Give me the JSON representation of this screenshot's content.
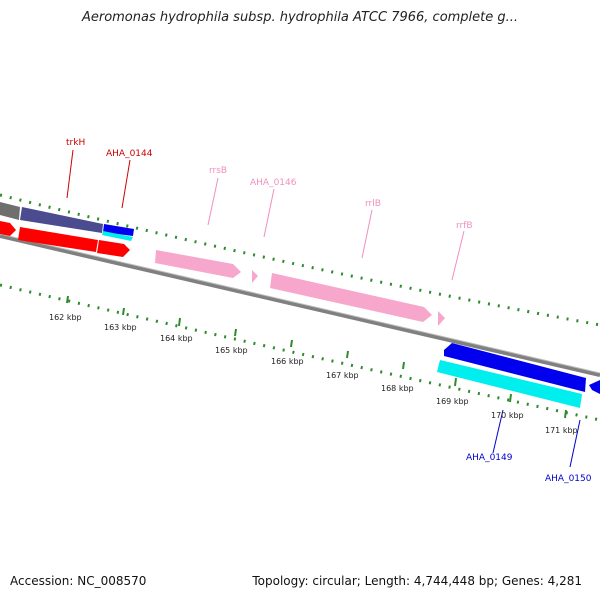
{
  "title": "Aeromonas hydrophila subsp. hydrophila ATCC 7966, complete g...",
  "footer": {
    "accession": "Accession: NC_008570",
    "topology": "Topology: circular; Length: 4,744,448 bp; Genes: 4,281"
  },
  "colors": {
    "backbone": "#808080",
    "tick": "#2e8b2e",
    "red_feature": "#ff0000",
    "pink_feature": "#f7a6cc",
    "blue_feature": "#0000ee",
    "cyan_feature": "#00eeee",
    "navy_feature": "#4b4b8f",
    "label_red": "#cc0000",
    "label_pink": "#ef8fbf",
    "label_blue": "#0000cc"
  },
  "scale_labels": [
    "162 kbp",
    "163 kbp",
    "164 kbp",
    "165 kbp",
    "166 kbp",
    "167 kbp",
    "168 kbp",
    "169 kbp",
    "170 kbp",
    "171 kbp"
  ],
  "gene_labels": {
    "trkH": "trkH",
    "aha_0144": "AHA_0144",
    "rrsB": "rrsB",
    "aha_0146": "AHA_0146",
    "rrlB": "rrlB",
    "rrfB": "rrfB",
    "aha_0149": "AHA_0149",
    "aha_0150": "AHA_0150"
  }
}
